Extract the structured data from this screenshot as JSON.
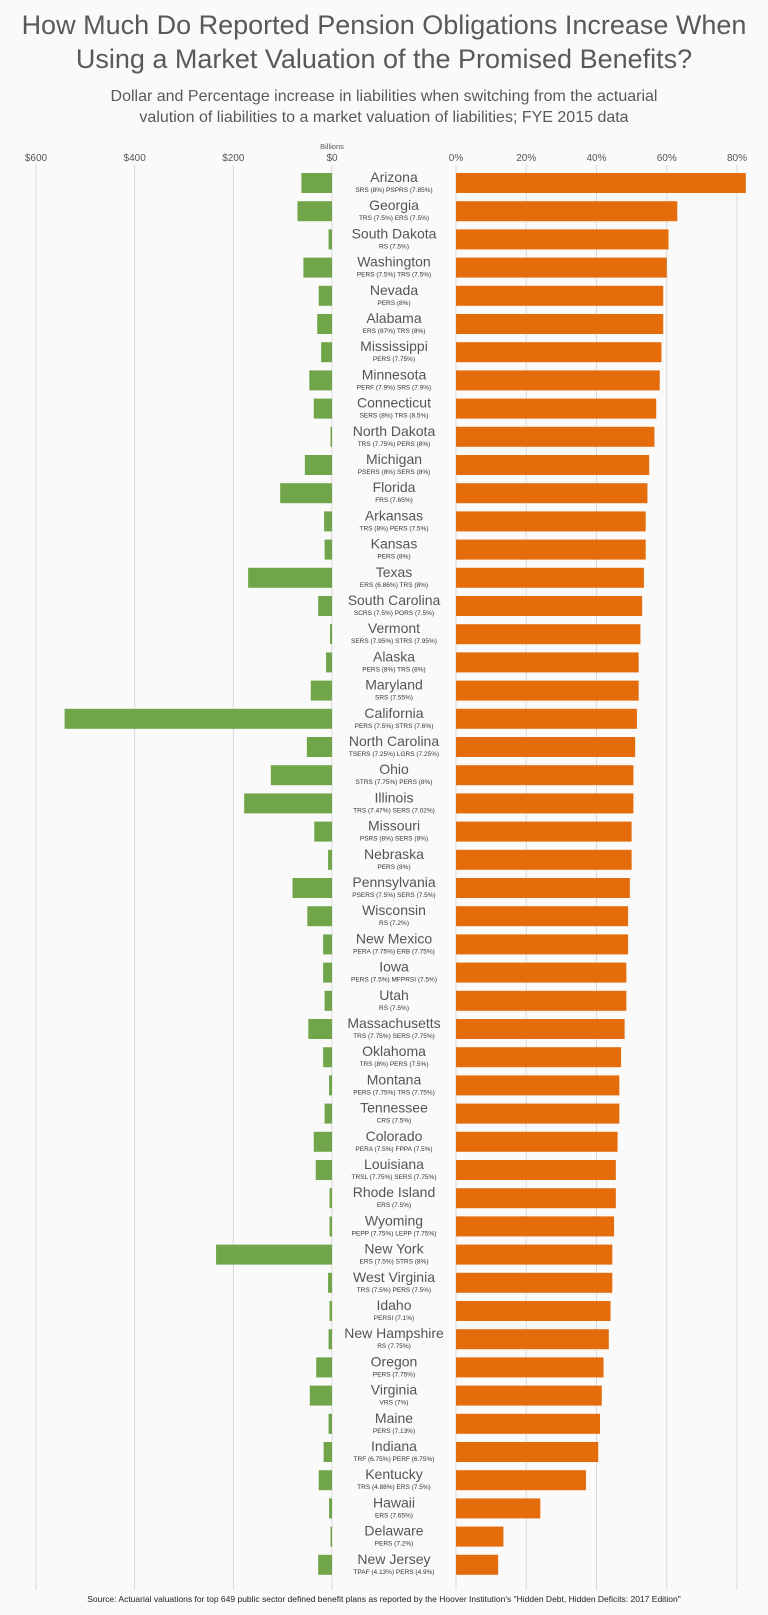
{
  "title": "How Much Do Reported Pension Obligations Increase When\nUsing a Market Valuation of the Promised Benefits?",
  "subtitle": "Dollar and Percentage increase in liabilities when switching from the actuarial\nvalution of liabilities to a market valuation of liabilities; FYE 2015 data",
  "source": "Source: Actuarial valuations for top 649 public sector defined benefit plans as reported by the Hoover Institution's \"Hidden Debt, Hidden Deficits: 2017 Edition\"",
  "colors": {
    "dollar_bar": "#70a54a",
    "percent_bar": "#e46c0a",
    "grid": "#d9d9d9"
  },
  "chart_data": [
    {
      "type": "bar",
      "orientation": "horizontal",
      "ylabel": "Billions",
      "x_ticks": [
        "$600",
        "$400",
        "$200",
        "$0"
      ],
      "xlim": [
        0,
        600
      ],
      "grid": true,
      "categories": [
        "Arizona",
        "Georgia",
        "South Dakota",
        "Washington",
        "Nevada",
        "Alabama",
        "Mississippi",
        "Minnesota",
        "Connecticut",
        "North Dakota",
        "Michigan",
        "Florida",
        "Arkansas",
        "Kansas",
        "Texas",
        "South Carolina",
        "Vermont",
        "Alaska",
        "Maryland",
        "California",
        "North Carolina",
        "Ohio",
        "Illinois",
        "Missouri",
        "Nebraska",
        "Pennsylvania",
        "Wisconsin",
        "New Mexico",
        "Iowa",
        "Utah",
        "Massachusetts",
        "Oklahoma",
        "Montana",
        "Tennessee",
        "Colorado",
        "Louisiana",
        "Rhode Island",
        "Wyoming",
        "New York",
        "West Virginia",
        "Idaho",
        "New Hampshire",
        "Oregon",
        "Virginia",
        "Maine",
        "Indiana",
        "Kentucky",
        "Hawaii",
        "Delaware",
        "New Jersey"
      ],
      "values": [
        62,
        70,
        7,
        58,
        27,
        30,
        22,
        46,
        37,
        3,
        55,
        105,
        16,
        15,
        170,
        28,
        4,
        12,
        43,
        542,
        51,
        124,
        178,
        36,
        8,
        80,
        50,
        18,
        18,
        15,
        48,
        18,
        6,
        15,
        37,
        33,
        5,
        5,
        235,
        8,
        5,
        7,
        32,
        45,
        7,
        17,
        27,
        6,
        3,
        28
      ]
    },
    {
      "type": "bar",
      "orientation": "horizontal",
      "x_ticks": [
        "0%",
        "20%",
        "40%",
        "60%",
        "80%"
      ],
      "xlim": [
        0,
        80
      ],
      "grid": true,
      "categories": [
        "Arizona",
        "Georgia",
        "South Dakota",
        "Washington",
        "Nevada",
        "Alabama",
        "Mississippi",
        "Minnesota",
        "Connecticut",
        "North Dakota",
        "Michigan",
        "Florida",
        "Arkansas",
        "Kansas",
        "Texas",
        "South Carolina",
        "Vermont",
        "Alaska",
        "Maryland",
        "California",
        "North Carolina",
        "Ohio",
        "Illinois",
        "Missouri",
        "Nebraska",
        "Pennsylvania",
        "Wisconsin",
        "New Mexico",
        "Iowa",
        "Utah",
        "Massachusetts",
        "Oklahoma",
        "Montana",
        "Tennessee",
        "Colorado",
        "Louisiana",
        "Rhode Island",
        "Wyoming",
        "New York",
        "West Virginia",
        "Idaho",
        "New Hampshire",
        "Oregon",
        "Virginia",
        "Maine",
        "Indiana",
        "Kentucky",
        "Hawaii",
        "Delaware",
        "New Jersey"
      ],
      "plans": [
        "SRS (8%) PSPRS (7.85%)",
        "TRS (7.5%) ERS (7.5%)",
        "RS (7.5%)",
        "PERS (7.5%) TRS (7.5%)",
        "PERS (8%)",
        "ERS (87%) TRS (8%)",
        "PERS (7.75%)",
        "PERF (7.9%) SRS (7.9%)",
        "SERS (8%) TRS (8.5%)",
        "TRS (7.75%) PERS (8%)",
        "PSERS (8%) SERS (8%)",
        "FRS (7.65%)",
        "TRS (8%) PERS (7.5%)",
        "PERS (8%)",
        "ERS (6.86%) TRS (8%)",
        "SCRS (7.5%) PORS (7.5%)",
        "SERS (7.95%) STRS (7.95%)",
        "PERS (8%) TRS (8%)",
        "SRS (7.55%)",
        "PERS (7.5%) STRS (7.6%)",
        "TSERS (7.25%) LGRS (7.25%)",
        "STRS (7.75%) PERS (8%)",
        "TRS (7.47%) SERS (7.02%)",
        "PSRS (8%) SERS (8%)",
        "PERS (8%)",
        "PSERS (7.5%) SERS (7.5%)",
        "RS (7.2%)",
        "PERA (7.75%) ERB (7.75%)",
        "PERS (7.5%) MFPRSI (7.5%)",
        "RS (7.5%)",
        "TRS (7.75%) SERS (7.75%)",
        "TRS (8%) PERS (7.5%)",
        "PERS (7.75%) TRS (7.75%)",
        "CRS (7.5%)",
        "PERA (7.5%) FPPA (7.5%)",
        "TRSL (7.75%) SERS (7.75%)",
        "ERS (7.5%)",
        "PEPP (7.75%) LEPP (7.75%)",
        "ERS (7.5%) STRS (8%)",
        "TRS (7.5%) PERS (7.5%)",
        "PERSI (7.1%)",
        "RS (7.75%)",
        "PERS (7.75%)",
        "VRS (7%)",
        "PERS (7.13%)",
        "TRF (6.75%) PERF (6.75%)",
        "TRS (4.88%) ERS (7.5%)",
        "ERS (7.65%)",
        "PERS (7.2%)",
        "TPAF (4.13%) PERS (4.9%)"
      ],
      "values": [
        82.5,
        63,
        60.5,
        60,
        59,
        59,
        58.5,
        58,
        57,
        56.5,
        55,
        54.5,
        54,
        54,
        53.5,
        53,
        52.5,
        52,
        52,
        51.5,
        51,
        50.5,
        50.5,
        50,
        50,
        49.5,
        49,
        49,
        48.5,
        48.5,
        48,
        47,
        46.5,
        46.5,
        46,
        45.5,
        45.5,
        45,
        44.5,
        44.5,
        44,
        43.5,
        42,
        41.5,
        41,
        40.5,
        37,
        24,
        13.5,
        12
      ]
    }
  ]
}
